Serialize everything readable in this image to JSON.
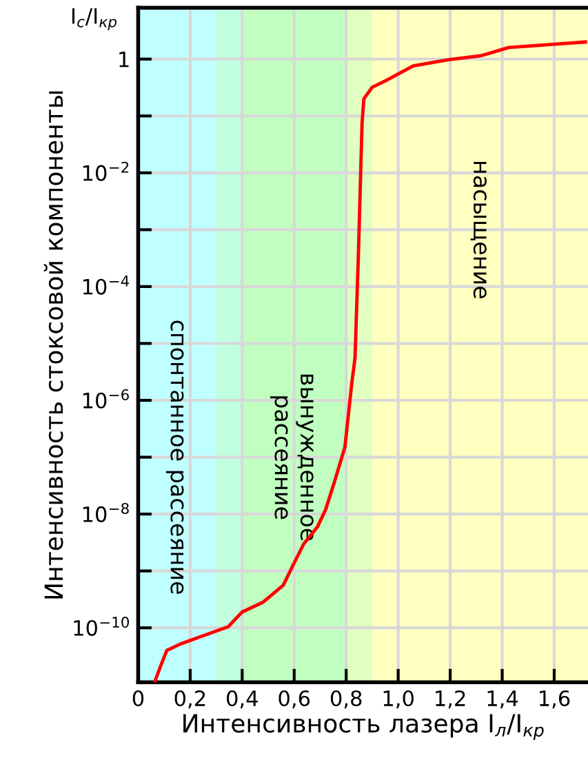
{
  "chart_data": {
    "type": "line",
    "xlabel": "Интенсивность лазера I$_{л}$/I$_{кр}$",
    "ylabel": "Интенсивность стоксовой компоненты",
    "annotations": [
      "I$_{с}$/I$_{кр}$"
    ],
    "x": [
      0.063,
      0.084,
      0.11,
      0.163,
      0.24,
      0.347,
      0.4,
      0.479,
      0.558,
      0.597,
      0.637,
      0.69,
      0.721,
      0.755,
      0.795,
      0.821,
      0.834,
      0.847,
      0.861,
      0.868,
      0.9,
      0.953,
      1.058,
      1.19,
      1.32,
      1.426,
      1.584,
      1.72
    ],
    "series": [
      {
        "color": "#ff0000",
        "values": [
          1.1e-11,
          2e-11,
          4e-11,
          5.2e-11,
          7e-11,
          1.05e-10,
          1.9e-10,
          2.8e-10,
          5.6e-10,
          1.3e-09,
          3e-09,
          6e-09,
          1.2e-08,
          3.7e-08,
          1.5e-07,
          1.9e-06,
          5.6e-06,
          0.00037,
          0.074,
          0.2,
          0.32,
          0.42,
          0.76,
          0.97,
          1.15,
          1.6,
          1.8,
          2.0
        ]
      }
    ],
    "log": "y",
    "xlim": [
      0,
      1.73
    ],
    "ylim": [
      1.1e-11,
      8
    ],
    "xticks": [
      {
        "value": 0,
        "label": "0"
      },
      {
        "value": 0.2,
        "label": "0,2"
      },
      {
        "value": 0.4,
        "label": "0,4"
      },
      {
        "value": 0.6,
        "label": "0,6"
      },
      {
        "value": 0.8,
        "label": "0,8"
      },
      {
        "value": 1.0,
        "label": "1,0"
      },
      {
        "value": 1.2,
        "label": "1,2"
      },
      {
        "value": 1.4,
        "label": "1,4"
      },
      {
        "value": 1.6,
        "label": "1,6"
      }
    ],
    "yticks": [
      {
        "value": 1e-10,
        "label": "10$^{−10}$"
      },
      {
        "value": 1e-09,
        "label": null
      },
      {
        "value": 1e-08,
        "label": "10$^{−8}$"
      },
      {
        "value": 1e-07,
        "label": null
      },
      {
        "value": 1e-06,
        "label": "10$^{−6}$"
      },
      {
        "value": 1e-05,
        "label": null
      },
      {
        "value": 0.0001,
        "label": "10$^{−4}$"
      },
      {
        "value": 0.001,
        "label": null
      },
      {
        "value": 0.01,
        "label": "10$^{−2}$"
      },
      {
        "value": 0.1,
        "label": null
      },
      {
        "value": 1,
        "label": "1"
      }
    ],
    "bands": [
      {
        "axis": "x",
        "from": 0,
        "to": 0.3,
        "color": "#c0ffff",
        "label": "спонтанное рассеяние"
      },
      {
        "axis": "x",
        "from": 0.3,
        "to": 0.4,
        "color": "#c0ffe0"
      },
      {
        "axis": "x",
        "from": 0.4,
        "to": 0.8,
        "color": "#c0ffc0",
        "label": "вынужденное\nрассеяние"
      },
      {
        "axis": "x",
        "from": 0.8,
        "to": 0.9,
        "color": "#e0ffc0"
      },
      {
        "axis": "x",
        "from": 0.9,
        "to": 1.73,
        "color": "#ffffc0",
        "label": "насыщение"
      }
    ],
    "grid": true,
    "marker": "none",
    "line_style": "solid"
  }
}
